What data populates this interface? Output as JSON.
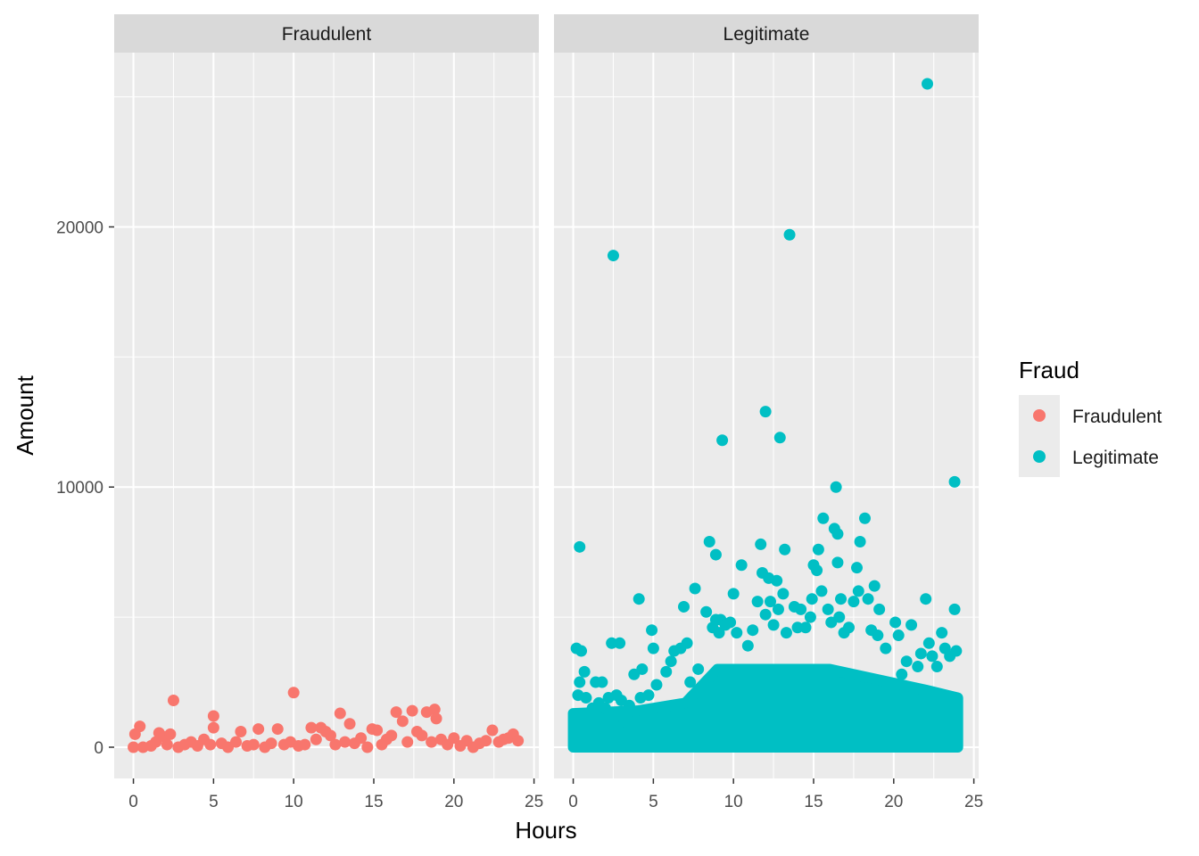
{
  "chart_data": {
    "type": "scatter",
    "facets": [
      "Fraudulent",
      "Legitimate"
    ],
    "xlabel": "Hours",
    "ylabel": "Amount",
    "xlim": [
      -1.2,
      25.3
    ],
    "ylim": [
      -1200,
      26700
    ],
    "xticks": [
      0,
      5,
      10,
      15,
      20,
      25
    ],
    "xtick_labels": [
      "0",
      "5",
      "10",
      "15",
      "20",
      "25"
    ],
    "yticks": [
      0,
      10000,
      20000
    ],
    "ytick_labels": [
      "0",
      "10000",
      "20000"
    ],
    "grid": true,
    "legend": {
      "title": "Fraud",
      "position": "right",
      "entries": [
        {
          "label": "Fraudulent",
          "color": "#F8766D"
        },
        {
          "label": "Legitimate",
          "color": "#00BFC4"
        }
      ]
    },
    "series": [
      {
        "name": "Fraudulent",
        "color": "#F8766D",
        "facet": "Fraudulent",
        "points": [
          [
            0,
            0
          ],
          [
            0.1,
            500
          ],
          [
            0.4,
            800
          ],
          [
            0.6,
            0
          ],
          [
            1.1,
            50
          ],
          [
            1.4,
            200
          ],
          [
            1.6,
            550
          ],
          [
            1.9,
            400
          ],
          [
            2.1,
            100
          ],
          [
            2.3,
            500
          ],
          [
            2.5,
            1800
          ],
          [
            2.8,
            0
          ],
          [
            3.2,
            100
          ],
          [
            3.6,
            200
          ],
          [
            4.0,
            50
          ],
          [
            4.4,
            300
          ],
          [
            4.8,
            100
          ],
          [
            5.0,
            1200
          ],
          [
            5.0,
            750
          ],
          [
            5.5,
            150
          ],
          [
            5.9,
            0
          ],
          [
            6.4,
            200
          ],
          [
            6.7,
            600
          ],
          [
            7.1,
            50
          ],
          [
            7.5,
            100
          ],
          [
            7.8,
            700
          ],
          [
            8.2,
            0
          ],
          [
            8.6,
            150
          ],
          [
            9.0,
            700
          ],
          [
            9.4,
            100
          ],
          [
            9.8,
            200
          ],
          [
            10.0,
            2100
          ],
          [
            10.3,
            50
          ],
          [
            10.7,
            100
          ],
          [
            11.1,
            750
          ],
          [
            11.4,
            300
          ],
          [
            11.7,
            750
          ],
          [
            12.0,
            600
          ],
          [
            12.3,
            450
          ],
          [
            12.6,
            100
          ],
          [
            12.9,
            1300
          ],
          [
            13.2,
            200
          ],
          [
            13.5,
            900
          ],
          [
            13.8,
            150
          ],
          [
            14.2,
            350
          ],
          [
            14.6,
            0
          ],
          [
            14.9,
            700
          ],
          [
            15.2,
            650
          ],
          [
            15.5,
            100
          ],
          [
            15.8,
            300
          ],
          [
            16.1,
            450
          ],
          [
            16.4,
            1350
          ],
          [
            16.8,
            1000
          ],
          [
            17.1,
            200
          ],
          [
            17.4,
            1400
          ],
          [
            17.7,
            600
          ],
          [
            18.0,
            450
          ],
          [
            18.3,
            1350
          ],
          [
            18.6,
            200
          ],
          [
            18.8,
            1450
          ],
          [
            18.9,
            1100
          ],
          [
            19.2,
            300
          ],
          [
            19.6,
            100
          ],
          [
            20.0,
            350
          ],
          [
            20.4,
            50
          ],
          [
            20.8,
            250
          ],
          [
            21.2,
            0
          ],
          [
            21.6,
            150
          ],
          [
            22.0,
            250
          ],
          [
            22.4,
            650
          ],
          [
            22.8,
            200
          ],
          [
            23.1,
            300
          ],
          [
            23.4,
            350
          ],
          [
            23.7,
            500
          ],
          [
            24.0,
            250
          ]
        ]
      },
      {
        "name": "Legitimate",
        "color": "#00BFC4",
        "facet": "Legitimate",
        "points": [
          [
            0.2,
            3800
          ],
          [
            0.3,
            2000
          ],
          [
            0.4,
            2500
          ],
          [
            0.4,
            7700
          ],
          [
            0.5,
            3700
          ],
          [
            0.7,
            2900
          ],
          [
            0.8,
            1900
          ],
          [
            1.2,
            1500
          ],
          [
            1.4,
            2500
          ],
          [
            1.6,
            1700
          ],
          [
            1.8,
            2500
          ],
          [
            2.0,
            1500
          ],
          [
            2.2,
            1900
          ],
          [
            2.4,
            4000
          ],
          [
            2.5,
            18900
          ],
          [
            2.7,
            2000
          ],
          [
            2.9,
            4000
          ],
          [
            3.0,
            1800
          ],
          [
            3.2,
            1000
          ],
          [
            3.5,
            1600
          ],
          [
            3.8,
            2800
          ],
          [
            4.1,
            5700
          ],
          [
            4.2,
            1900
          ],
          [
            4.3,
            3000
          ],
          [
            4.7,
            2000
          ],
          [
            4.9,
            4500
          ],
          [
            5.0,
            3800
          ],
          [
            5.2,
            2400
          ],
          [
            5.5,
            1500
          ],
          [
            5.8,
            2900
          ],
          [
            6.1,
            3300
          ],
          [
            6.3,
            3700
          ],
          [
            6.7,
            3800
          ],
          [
            6.9,
            5400
          ],
          [
            7.1,
            4000
          ],
          [
            7.3,
            2500
          ],
          [
            7.6,
            6100
          ],
          [
            7.8,
            3000
          ],
          [
            8.3,
            5200
          ],
          [
            8.5,
            7900
          ],
          [
            8.7,
            4600
          ],
          [
            8.9,
            4900
          ],
          [
            8.9,
            7400
          ],
          [
            9.1,
            4400
          ],
          [
            9.2,
            4900
          ],
          [
            9.3,
            11800
          ],
          [
            9.5,
            4700
          ],
          [
            9.8,
            4800
          ],
          [
            10.0,
            5900
          ],
          [
            10.2,
            4400
          ],
          [
            10.5,
            7000
          ],
          [
            10.9,
            3900
          ],
          [
            11.2,
            4500
          ],
          [
            11.5,
            5600
          ],
          [
            11.7,
            7800
          ],
          [
            11.8,
            6700
          ],
          [
            12.0,
            12900
          ],
          [
            12.0,
            5100
          ],
          [
            12.2,
            6500
          ],
          [
            12.3,
            5600
          ],
          [
            12.5,
            4700
          ],
          [
            12.7,
            6400
          ],
          [
            12.8,
            5300
          ],
          [
            12.9,
            11900
          ],
          [
            13.1,
            5900
          ],
          [
            13.2,
            7600
          ],
          [
            13.3,
            4400
          ],
          [
            13.5,
            19700
          ],
          [
            13.8,
            5400
          ],
          [
            14.0,
            4600
          ],
          [
            14.2,
            5300
          ],
          [
            14.5,
            4600
          ],
          [
            14.8,
            5000
          ],
          [
            14.9,
            5700
          ],
          [
            15.0,
            7000
          ],
          [
            15.2,
            6800
          ],
          [
            15.3,
            7600
          ],
          [
            15.5,
            6000
          ],
          [
            15.6,
            8800
          ],
          [
            15.9,
            5300
          ],
          [
            16.1,
            4800
          ],
          [
            16.3,
            8400
          ],
          [
            16.4,
            10000
          ],
          [
            16.5,
            8200
          ],
          [
            16.5,
            7100
          ],
          [
            16.6,
            5000
          ],
          [
            16.7,
            5700
          ],
          [
            16.9,
            4400
          ],
          [
            17.2,
            4600
          ],
          [
            17.5,
            5600
          ],
          [
            17.7,
            6900
          ],
          [
            17.8,
            6000
          ],
          [
            17.9,
            7900
          ],
          [
            18.2,
            8800
          ],
          [
            18.4,
            5700
          ],
          [
            18.6,
            4500
          ],
          [
            18.8,
            6200
          ],
          [
            19.0,
            4300
          ],
          [
            19.1,
            5300
          ],
          [
            19.5,
            3800
          ],
          [
            20.1,
            4800
          ],
          [
            20.3,
            4300
          ],
          [
            20.5,
            2800
          ],
          [
            20.8,
            3300
          ],
          [
            21.1,
            4700
          ],
          [
            21.5,
            3100
          ],
          [
            21.7,
            3600
          ],
          [
            22.0,
            5700
          ],
          [
            22.1,
            25500
          ],
          [
            22.2,
            4000
          ],
          [
            22.4,
            3500
          ],
          [
            22.7,
            3100
          ],
          [
            23.0,
            4400
          ],
          [
            23.2,
            3800
          ],
          [
            23.5,
            3500
          ],
          [
            23.8,
            10200
          ],
          [
            23.8,
            5300
          ],
          [
            23.9,
            3700
          ]
        ],
        "dense_band": {
          "x": [
            0,
            24
          ],
          "y": [
            0,
            3000
          ],
          "note_free": true
        }
      }
    ]
  }
}
